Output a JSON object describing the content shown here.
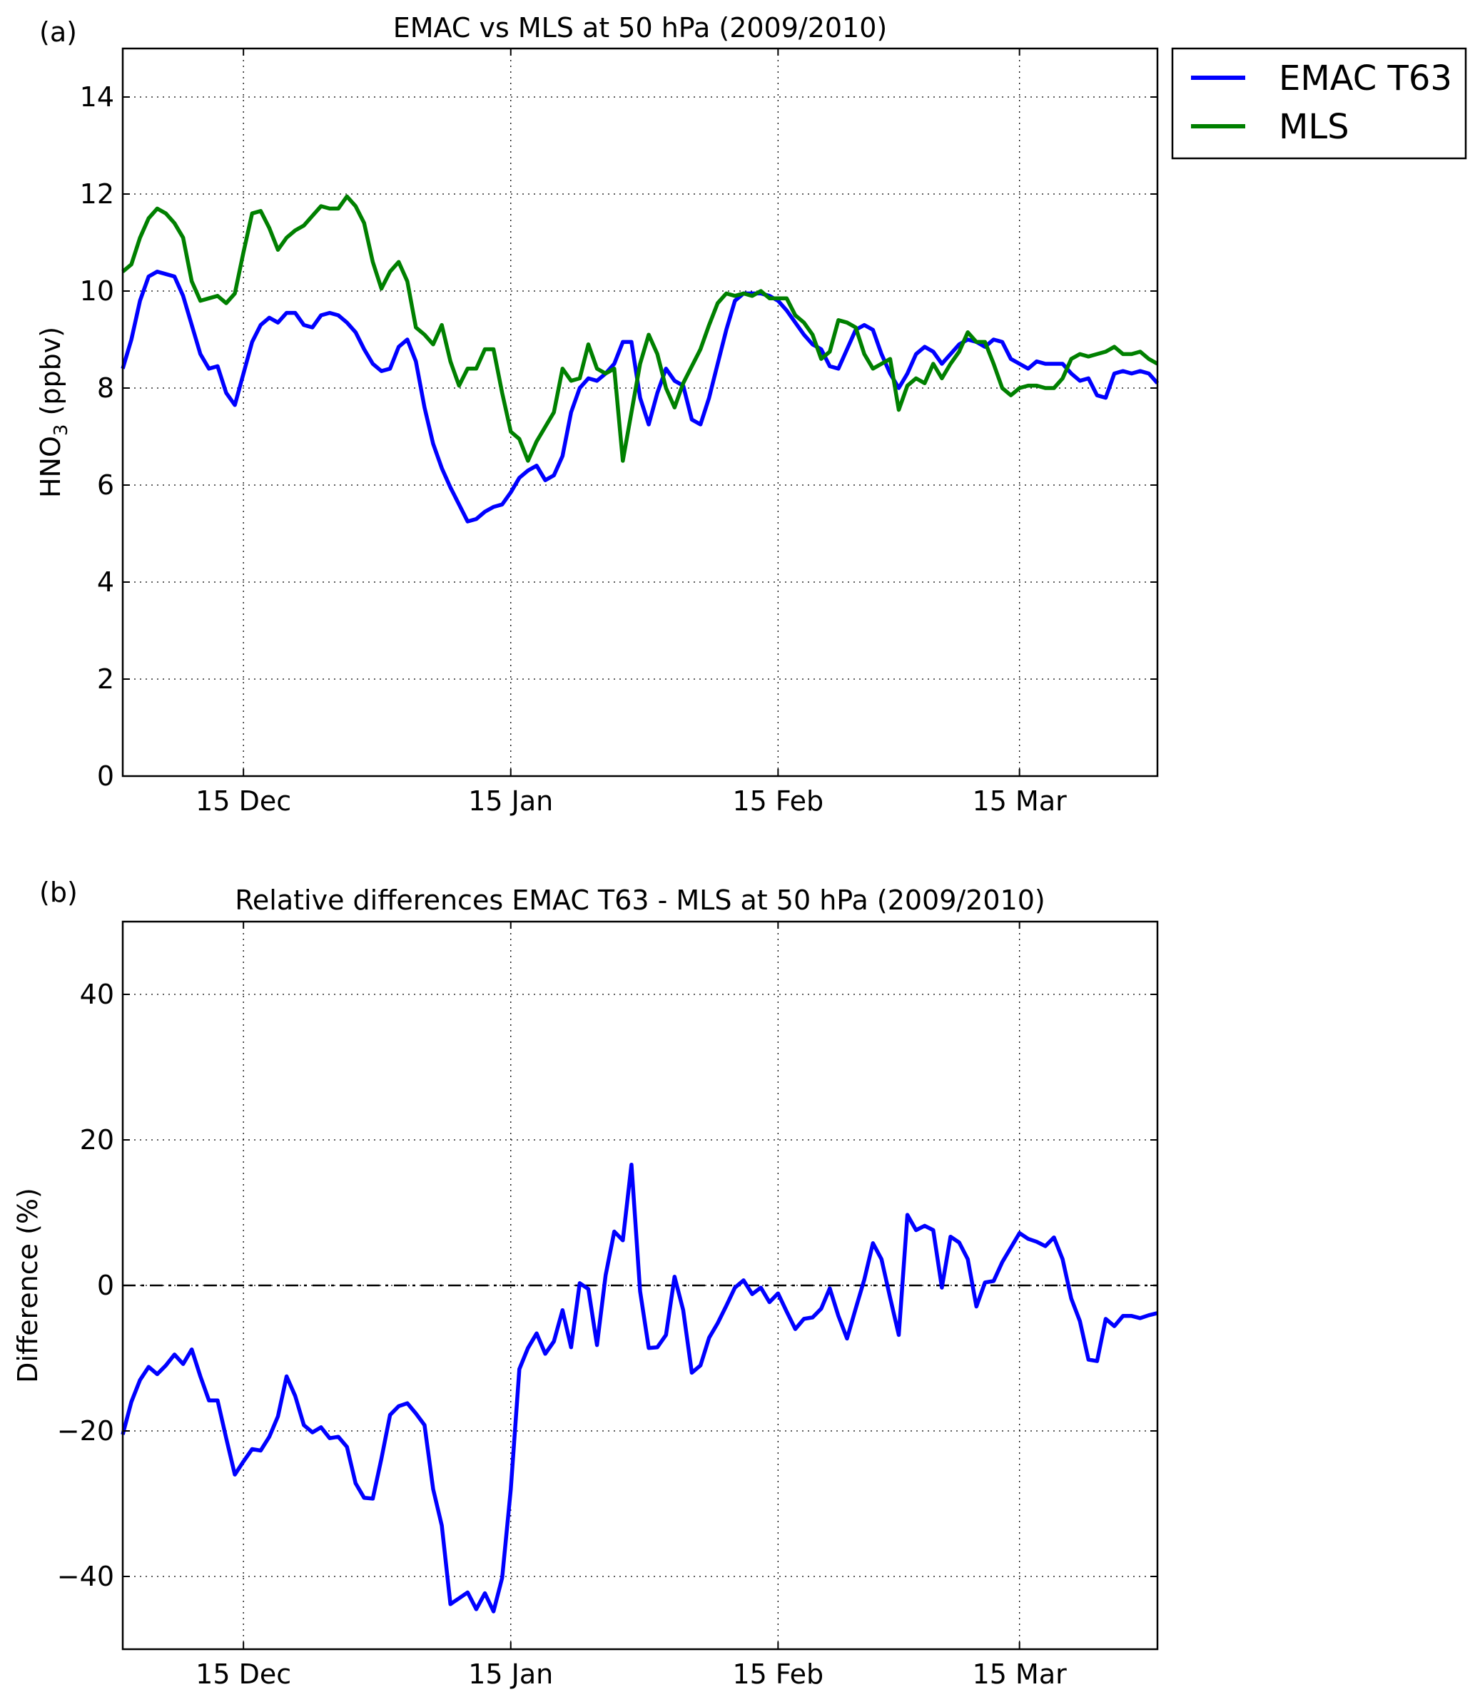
{
  "chart_data": [
    {
      "panel_label": "(a)",
      "type": "line",
      "title": "EMAC vs MLS at  50 hPa (2009/2010)",
      "xlabel": "",
      "ylabel": "HNO₃ (ppbv)",
      "ylabel_parts": {
        "main": "HNO",
        "sub": "3",
        "rest": " (ppbv)"
      },
      "x_unit": "date (Dec 2009 – Mar 2010)",
      "x_axis": {
        "ticks": [
          {
            "label": "15 Dec",
            "date": "2009-12-15"
          },
          {
            "label": "15 Jan",
            "date": "2010-01-15"
          },
          {
            "label": "15 Feb",
            "date": "2010-02-15"
          },
          {
            "label": "15 Mar",
            "date": "2010-03-15"
          }
        ],
        "range": [
          "2009-12-01",
          "2010-03-31"
        ]
      },
      "ylim": [
        0,
        15
      ],
      "yticks": [
        0,
        2,
        4,
        6,
        8,
        10,
        12,
        14
      ],
      "grid": true,
      "legend": {
        "placement": "outside top-right",
        "entries": [
          "EMAC T63",
          "MLS"
        ]
      },
      "x": [
        "2009-12-01",
        "2009-12-02",
        "2009-12-03",
        "2009-12-04",
        "2009-12-05",
        "2009-12-06",
        "2009-12-07",
        "2009-12-08",
        "2009-12-09",
        "2009-12-10",
        "2009-12-11",
        "2009-12-12",
        "2009-12-13",
        "2009-12-14",
        "2009-12-15",
        "2009-12-16",
        "2009-12-17",
        "2009-12-18",
        "2009-12-19",
        "2009-12-20",
        "2009-12-21",
        "2009-12-22",
        "2009-12-23",
        "2009-12-24",
        "2009-12-25",
        "2009-12-26",
        "2009-12-27",
        "2009-12-28",
        "2009-12-29",
        "2009-12-30",
        "2009-12-31",
        "2010-01-01",
        "2010-01-02",
        "2010-01-03",
        "2010-01-04",
        "2010-01-05",
        "2010-01-06",
        "2010-01-07",
        "2010-01-08",
        "2010-01-09",
        "2010-01-10",
        "2010-01-11",
        "2010-01-12",
        "2010-01-13",
        "2010-01-14",
        "2010-01-15",
        "2010-01-16",
        "2010-01-17",
        "2010-01-18",
        "2010-01-19",
        "2010-01-20",
        "2010-01-21",
        "2010-01-22",
        "2010-01-23",
        "2010-01-24",
        "2010-01-25",
        "2010-01-26",
        "2010-01-27",
        "2010-01-28",
        "2010-01-29",
        "2010-01-30",
        "2010-01-31",
        "2010-02-01",
        "2010-02-02",
        "2010-02-03",
        "2010-02-04",
        "2010-02-05",
        "2010-02-06",
        "2010-02-07",
        "2010-02-08",
        "2010-02-09",
        "2010-02-10",
        "2010-02-11",
        "2010-02-12",
        "2010-02-13",
        "2010-02-14",
        "2010-02-15",
        "2010-02-16",
        "2010-02-17",
        "2010-02-18",
        "2010-02-19",
        "2010-02-20",
        "2010-02-21",
        "2010-02-22",
        "2010-02-23",
        "2010-02-24",
        "2010-02-25",
        "2010-02-26",
        "2010-02-27",
        "2010-02-28",
        "2010-03-01",
        "2010-03-02",
        "2010-03-03",
        "2010-03-04",
        "2010-03-05",
        "2010-03-06",
        "2010-03-07",
        "2010-03-08",
        "2010-03-09",
        "2010-03-10",
        "2010-03-11",
        "2010-03-12",
        "2010-03-13",
        "2010-03-14",
        "2010-03-15",
        "2010-03-16",
        "2010-03-17",
        "2010-03-18",
        "2010-03-19",
        "2010-03-20",
        "2010-03-21",
        "2010-03-22",
        "2010-03-23",
        "2010-03-24",
        "2010-03-25",
        "2010-03-26",
        "2010-03-27",
        "2010-03-28",
        "2010-03-29",
        "2010-03-30",
        "2010-03-31"
      ],
      "series": [
        {
          "name": "EMAC T63",
          "color": "#0000ff",
          "values": [
            8.4,
            9.0,
            9.8,
            10.3,
            10.4,
            10.35,
            10.3,
            9.9,
            9.3,
            8.7,
            8.4,
            8.45,
            7.9,
            7.65,
            8.3,
            8.95,
            9.3,
            9.45,
            9.35,
            9.55,
            9.55,
            9.3,
            9.25,
            9.5,
            9.55,
            9.5,
            9.35,
            9.15,
            8.8,
            8.5,
            8.35,
            8.4,
            8.85,
            9.0,
            8.55,
            7.6,
            6.85,
            6.35,
            5.95,
            5.6,
            5.25,
            5.3,
            5.45,
            5.55,
            5.6,
            5.85,
            6.15,
            6.3,
            6.4,
            6.1,
            6.2,
            6.6,
            7.5,
            8.0,
            8.2,
            8.15,
            8.3,
            8.5,
            8.95,
            8.95,
            7.8,
            7.25,
            7.9,
            8.4,
            8.15,
            8.05,
            7.35,
            7.25,
            7.8,
            8.5,
            9.2,
            9.8,
            9.95,
            9.95,
            9.95,
            9.9,
            9.8,
            9.6,
            9.35,
            9.1,
            8.9,
            8.8,
            8.45,
            8.4,
            8.8,
            9.2,
            9.3,
            9.2,
            8.7,
            8.3,
            8.0,
            8.3,
            8.7,
            8.85,
            8.75,
            8.5,
            8.7,
            8.9,
            9.0,
            8.95,
            8.85,
            9.0,
            8.95,
            8.6,
            8.5,
            8.4,
            8.55,
            8.5,
            8.5,
            8.5,
            8.3,
            8.15,
            8.2,
            7.85,
            7.8,
            8.3,
            8.35,
            8.3,
            8.35,
            8.3,
            8.1
          ]
        },
        {
          "name": "MLS",
          "color": "#008000",
          "values": [
            10.4,
            10.55,
            11.1,
            11.5,
            11.7,
            11.6,
            11.4,
            11.1,
            10.2,
            9.8,
            9.85,
            9.9,
            9.75,
            9.95,
            10.8,
            11.6,
            11.65,
            11.3,
            10.85,
            11.1,
            11.25,
            11.35,
            11.55,
            11.75,
            11.7,
            11.7,
            11.95,
            11.75,
            11.4,
            10.6,
            10.05,
            10.4,
            10.6,
            10.2,
            9.25,
            9.1,
            8.9,
            9.3,
            8.55,
            8.05,
            8.4,
            8.4,
            8.8,
            8.8,
            7.9,
            7.1,
            6.95,
            6.5,
            6.9,
            7.2,
            7.5,
            8.4,
            8.15,
            8.2,
            8.9,
            8.4,
            8.3,
            8.4,
            6.5,
            7.5,
            8.5,
            9.1,
            8.7,
            8.0,
            7.6,
            8.1,
            8.45,
            8.8,
            9.3,
            9.75,
            9.95,
            9.9,
            9.95,
            9.9,
            10.0,
            9.85,
            9.85,
            9.85,
            9.5,
            9.35,
            9.1,
            8.6,
            8.75,
            9.4,
            9.35,
            9.25,
            8.7,
            8.4,
            8.5,
            8.6,
            7.55,
            8.05,
            8.2,
            8.1,
            8.5,
            8.2,
            8.5,
            8.75,
            9.15,
            8.95,
            8.95,
            8.5,
            8.0,
            7.85,
            8.0,
            8.05,
            8.05,
            8.0,
            8.0,
            8.2,
            8.6,
            8.7,
            8.65,
            8.7,
            8.75,
            8.85,
            8.7,
            8.7,
            8.75,
            8.6,
            8.5
          ]
        }
      ]
    },
    {
      "panel_label": "(b)",
      "type": "line",
      "title": "Relative differences EMAC T63 - MLS at  50 hPa (2009/2010)",
      "xlabel": "",
      "ylabel": "Difference (%)",
      "x_axis": {
        "ticks": [
          {
            "label": "15 Dec",
            "date": "2009-12-15"
          },
          {
            "label": "15 Jan",
            "date": "2010-01-15"
          },
          {
            "label": "15 Feb",
            "date": "2010-02-15"
          },
          {
            "label": "15 Mar",
            "date": "2010-03-15"
          }
        ],
        "range": [
          "2009-12-01",
          "2010-03-31"
        ]
      },
      "ylim": [
        -50,
        50
      ],
      "yticks": [
        -40,
        -20,
        0,
        20,
        40
      ],
      "ytick_labels": [
        "−40",
        "−20",
        "0",
        "20",
        "40"
      ],
      "reference_line": {
        "y": 0,
        "style": "dash-dot",
        "color": "#000000"
      },
      "grid": true,
      "x": [
        "2009-12-01",
        "2009-12-02",
        "2009-12-03",
        "2009-12-04",
        "2009-12-05",
        "2009-12-06",
        "2009-12-07",
        "2009-12-08",
        "2009-12-09",
        "2009-12-10",
        "2009-12-11",
        "2009-12-12",
        "2009-12-13",
        "2009-12-14",
        "2009-12-15",
        "2009-12-16",
        "2009-12-17",
        "2009-12-18",
        "2009-12-19",
        "2009-12-20",
        "2009-12-21",
        "2009-12-22",
        "2009-12-23",
        "2009-12-24",
        "2009-12-25",
        "2009-12-26",
        "2009-12-27",
        "2009-12-28",
        "2009-12-29",
        "2009-12-30",
        "2009-12-31",
        "2010-01-01",
        "2010-01-02",
        "2010-01-03",
        "2010-01-04",
        "2010-01-05",
        "2010-01-06",
        "2010-01-07",
        "2010-01-08",
        "2010-01-09",
        "2010-01-10",
        "2010-01-11",
        "2010-01-12",
        "2010-01-13",
        "2010-01-14",
        "2010-01-15",
        "2010-01-16",
        "2010-01-17",
        "2010-01-18",
        "2010-01-19",
        "2010-01-20",
        "2010-01-21",
        "2010-01-22",
        "2010-01-23",
        "2010-01-24",
        "2010-01-25",
        "2010-01-26",
        "2010-01-27",
        "2010-01-28",
        "2010-01-29",
        "2010-01-30",
        "2010-01-31",
        "2010-02-01",
        "2010-02-02",
        "2010-02-03",
        "2010-02-04",
        "2010-02-05",
        "2010-02-06",
        "2010-02-07",
        "2010-02-08",
        "2010-02-09",
        "2010-02-10",
        "2010-02-11",
        "2010-02-12",
        "2010-02-13",
        "2010-02-14",
        "2010-02-15",
        "2010-02-16",
        "2010-02-17",
        "2010-02-18",
        "2010-02-19",
        "2010-02-20",
        "2010-02-21",
        "2010-02-22",
        "2010-02-23",
        "2010-02-24",
        "2010-02-25",
        "2010-02-26",
        "2010-02-27",
        "2010-02-28",
        "2010-03-01",
        "2010-03-02",
        "2010-03-03",
        "2010-03-04",
        "2010-03-05",
        "2010-03-06",
        "2010-03-07",
        "2010-03-08",
        "2010-03-09",
        "2010-03-10",
        "2010-03-11",
        "2010-03-12",
        "2010-03-13",
        "2010-03-14",
        "2010-03-15",
        "2010-03-16",
        "2010-03-17",
        "2010-03-18",
        "2010-03-19",
        "2010-03-20",
        "2010-03-21",
        "2010-03-22",
        "2010-03-23",
        "2010-03-24",
        "2010-03-25",
        "2010-03-26",
        "2010-03-27",
        "2010-03-28",
        "2010-03-29",
        "2010-03-30",
        "2010-03-31"
      ],
      "series": [
        {
          "color": "#0000ff",
          "values": [
            -20.5,
            -16,
            -13,
            -11.2,
            -12.2,
            -11,
            -9.5,
            -10.8,
            -8.8,
            -12.5,
            -15.8,
            -15.8,
            -21,
            -26,
            -24.2,
            -22.5,
            -22.7,
            -20.8,
            -18,
            -12.5,
            -15.2,
            -19.2,
            -20.2,
            -19.5,
            -21,
            -20.8,
            -22.2,
            -27.2,
            -29.2,
            -29.3,
            -23.8,
            -17.8,
            -16.6,
            -16.2,
            -17.6,
            -19.2,
            -28,
            -33,
            -43.8,
            -43,
            -42.2,
            -44.5,
            -42.3,
            -44.8,
            -40.2,
            -28,
            -11.5,
            -8.6,
            -6.6,
            -9.4,
            -7.7,
            -3.4,
            -8.5,
            0.3,
            -0.5,
            -8.2,
            1.4,
            7.4,
            6.2,
            16.6,
            -0.8,
            -8.6,
            -8.5,
            -6.8,
            1.2,
            -3.4,
            -12,
            -11,
            -7.2,
            -5.2,
            -2.8,
            -0.3,
            0.7,
            -1.2,
            -0.3,
            -2.3,
            -1.1,
            -3.6,
            -6,
            -4.6,
            -4.4,
            -3.2,
            -0.4,
            -4.2,
            -7.3,
            -3.2,
            0.8,
            5.8,
            3.6,
            -1.7,
            -6.8,
            9.7,
            7.6,
            8.2,
            7.6,
            -0.3,
            6.7,
            5.9,
            3.6,
            -2.9,
            0.4,
            0.6,
            3.2,
            5.2,
            7.2,
            6.4,
            6,
            5.4,
            6.6,
            3.6,
            -1.8,
            -4.9,
            -10.2,
            -10.4,
            -4.6,
            -5.6,
            -4.2,
            -4.2,
            -4.5,
            -4.1,
            -3.8
          ]
        }
      ]
    }
  ]
}
